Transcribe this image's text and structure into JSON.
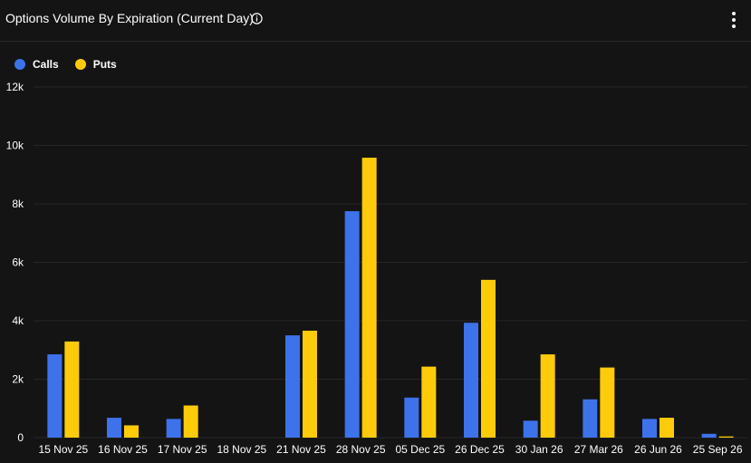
{
  "header": {
    "title": "Options Volume By Expiration (Current Day)",
    "info_icon": "info-circle-icon",
    "menu_icon": "vertical-dots-icon"
  },
  "colors": {
    "background": "#141414",
    "grid": "#262626",
    "text": "#ffffff",
    "calls": "#3d72ea",
    "puts": "#fecb0a"
  },
  "chart_data": {
    "type": "bar",
    "title": "Options Volume By Expiration (Current Day)",
    "xlabel": "",
    "ylabel": "",
    "legend_position": "top-left",
    "grid": true,
    "ylim": [
      0,
      12000
    ],
    "yticks": [
      0,
      2000,
      4000,
      6000,
      8000,
      10000,
      12000
    ],
    "ytick_labels": [
      "0",
      "2k",
      "4k",
      "6k",
      "8k",
      "10k",
      "12k"
    ],
    "categories": [
      "15 Nov 25",
      "16 Nov 25",
      "17 Nov 25",
      "18 Nov 25",
      "21 Nov 25",
      "28 Nov 25",
      "05 Dec 25",
      "26 Dec 25",
      "30 Jan 26",
      "27 Mar 26",
      "26 Jun 26",
      "25 Sep 26"
    ],
    "series": [
      {
        "name": "Calls",
        "color": "#3d72ea",
        "values": [
          2850,
          680,
          640,
          0,
          3500,
          7750,
          1370,
          3930,
          580,
          1310,
          640,
          130
        ]
      },
      {
        "name": "Puts",
        "color": "#fecb0a",
        "values": [
          3290,
          420,
          1100,
          0,
          3660,
          9580,
          2430,
          5400,
          2850,
          2400,
          680,
          40
        ]
      }
    ]
  }
}
